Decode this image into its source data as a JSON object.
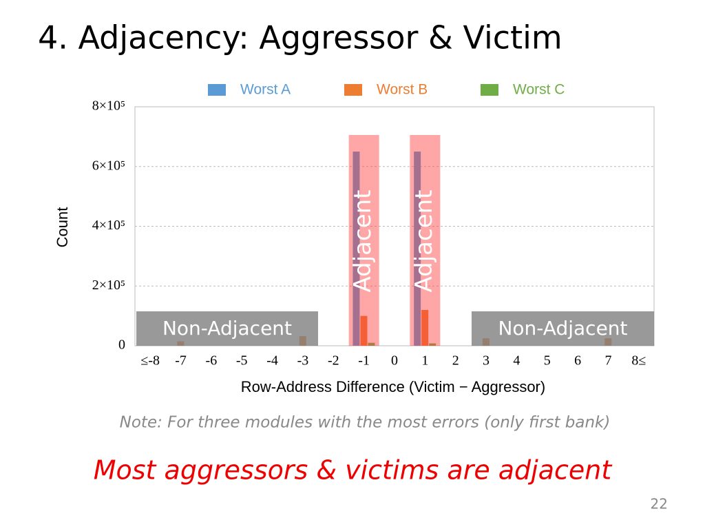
{
  "title": "4. Adjacency: Aggressor & Victim",
  "note": "Note: For three modules with the most errors (only first bank)",
  "takeaway": "Most aggressors & victims are adjacent",
  "page_number": 22,
  "chart_data": {
    "type": "bar",
    "x_label": "Row-Address Difference (Victim − Aggressor)",
    "y_label": "Count",
    "categories": [
      "≤-8",
      "-7",
      "-6",
      "-5",
      "-4",
      "-3",
      "-2",
      "-1",
      "0",
      "1",
      "2",
      "3",
      "4",
      "5",
      "6",
      "7",
      "8≤"
    ],
    "series": [
      {
        "name": "Worst A",
        "color": "#5b9bd5",
        "values": [
          0,
          0,
          0,
          0,
          0,
          0,
          0,
          650000,
          0,
          650000,
          0,
          0,
          0,
          0,
          0,
          0,
          0
        ]
      },
      {
        "name": "Worst B",
        "color": "#ed7d31",
        "values": [
          0,
          15000,
          0,
          0,
          0,
          32000,
          0,
          100000,
          0,
          120000,
          0,
          25000,
          0,
          0,
          0,
          25000,
          0
        ]
      },
      {
        "name": "Worst C",
        "color": "#70ad47",
        "values": [
          0,
          0,
          0,
          0,
          0,
          0,
          0,
          10000,
          0,
          8000,
          0,
          0,
          0,
          0,
          0,
          0,
          0
        ]
      }
    ],
    "ylim": [
      0,
      800000
    ],
    "yticks": [
      0,
      {
        "value": 200000,
        "label": "2×10⁵"
      },
      {
        "value": 400000,
        "label": "4×10⁵"
      },
      {
        "value": 600000,
        "label": "6×10⁵"
      },
      {
        "value": 800000,
        "label": "8×10⁵"
      }
    ],
    "grid": true,
    "annotations": [
      "Adjacent",
      "Adjacent",
      "Non-Adjacent",
      "Non-Adjacent"
    ]
  }
}
